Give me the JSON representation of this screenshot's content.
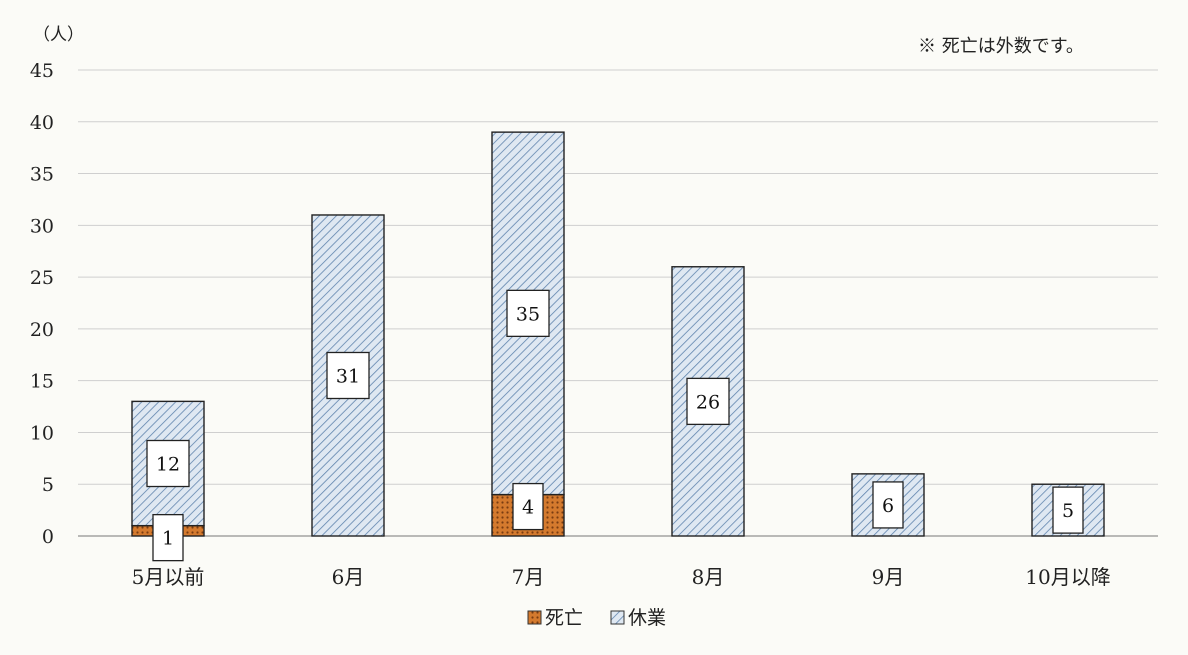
{
  "chart_data": {
    "type": "bar",
    "stacked": true,
    "unit_label": "（人）",
    "note": "※ 死亡は外数です。",
    "categories": [
      "5月以前",
      "6月",
      "7月",
      "8月",
      "9月",
      "10月以降"
    ],
    "series": [
      {
        "name": "死亡",
        "values": [
          1,
          0,
          4,
          0,
          0,
          0
        ],
        "color": "#d9823a",
        "pattern": "dots"
      },
      {
        "name": "休業",
        "values": [
          12,
          31,
          35,
          26,
          6,
          5
        ],
        "color": "#a9c4de",
        "pattern": "diagonal-hatch"
      }
    ],
    "data_labels": {
      "死亡": [
        "1",
        "",
        "4",
        "",
        "",
        ""
      ],
      "休業": [
        "12",
        "31",
        "35",
        "26",
        "6",
        "5"
      ]
    },
    "y_ticks": [
      "0",
      "5",
      "10",
      "15",
      "20",
      "25",
      "30",
      "35",
      "40",
      "45"
    ],
    "ylim": [
      0,
      45
    ],
    "grid": true,
    "legend_position": "bottom-center"
  }
}
